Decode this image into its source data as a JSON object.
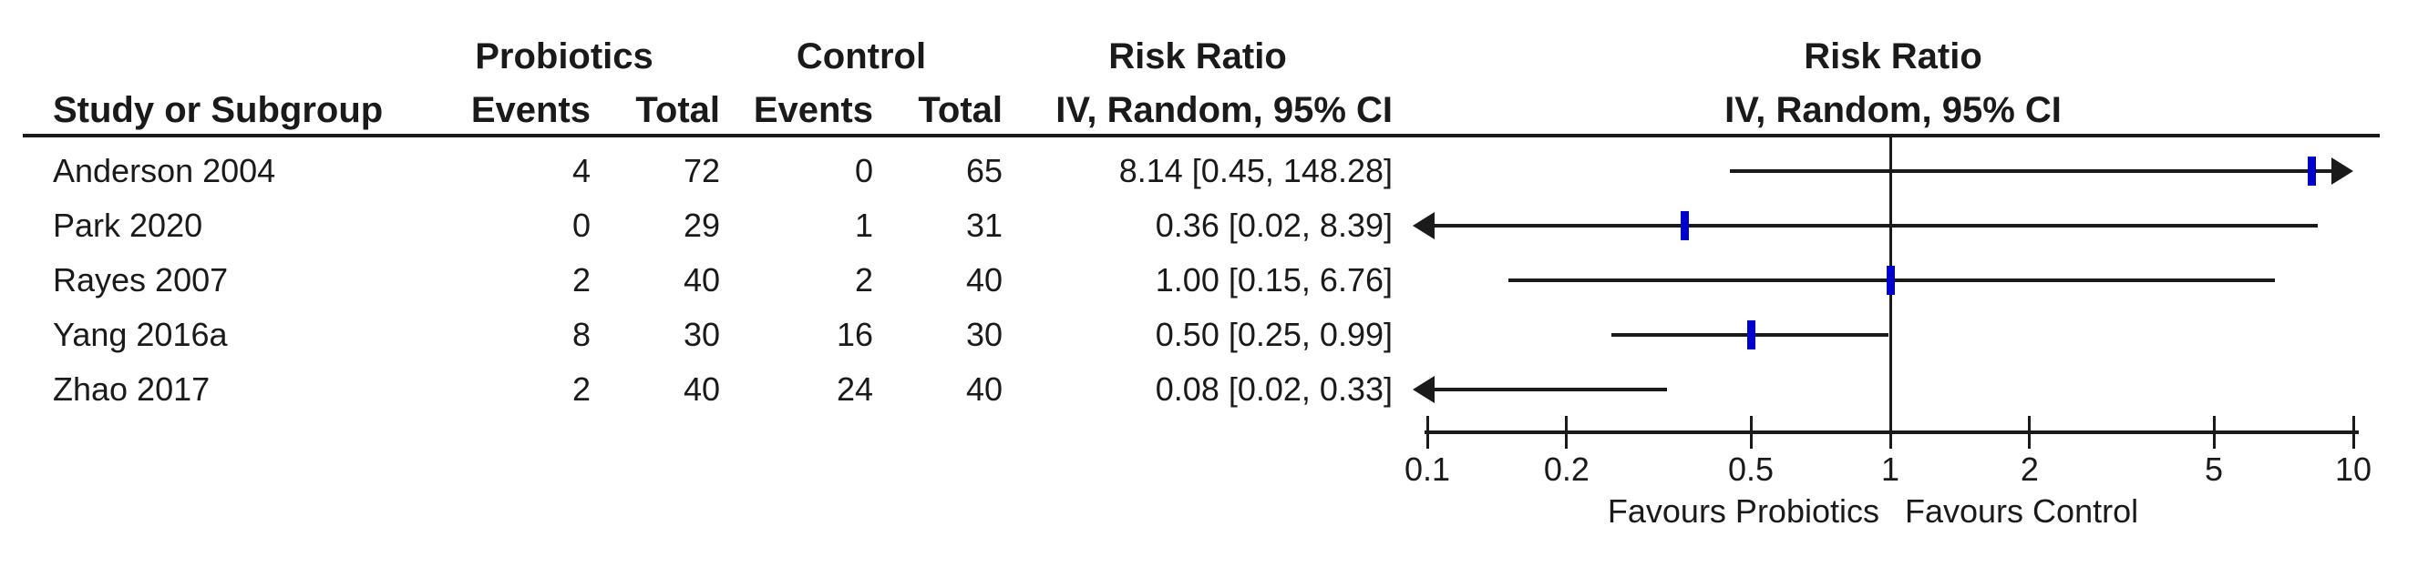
{
  "table": {
    "header": {
      "study_col": "Study or Subgroup",
      "group1": "Probiotics",
      "group2": "Control",
      "events": "Events",
      "total": "Total",
      "effect_line1": "Risk Ratio",
      "effect_line2": "IV, Random, 95% CI",
      "plot_line1": "Risk Ratio",
      "plot_line2": "IV, Random, 95% CI"
    },
    "rows": [
      {
        "study": "Anderson 2004",
        "events1": "4",
        "total1": "72",
        "events2": "0",
        "total2": "65",
        "ci": "8.14 [0.45, 148.28]"
      },
      {
        "study": "Park 2020",
        "events1": "0",
        "total1": "29",
        "events2": "1",
        "total2": "31",
        "ci": "0.36 [0.02, 8.39]"
      },
      {
        "study": "Rayes 2007",
        "events1": "2",
        "total1": "40",
        "events2": "2",
        "total2": "40",
        "ci": "1.00 [0.15, 6.76]"
      },
      {
        "study": "Yang 2016a",
        "events1": "8",
        "total1": "30",
        "events2": "16",
        "total2": "30",
        "ci": "0.50 [0.25, 0.99]"
      },
      {
        "study": "Zhao 2017",
        "events1": "2",
        "total1": "40",
        "events2": "24",
        "total2": "40",
        "ci": "0.08 [0.02, 0.33]"
      }
    ]
  },
  "chart_data": {
    "type": "forest",
    "effect_measure": "Risk Ratio",
    "method": "IV, Random, 95% CI",
    "scale": "log",
    "xlim": [
      0.1,
      10
    ],
    "ticks": [
      0.1,
      0.2,
      0.5,
      1,
      2,
      5,
      10
    ],
    "tick_labels": [
      "0.1",
      "0.2",
      "0.5",
      "1",
      "2",
      "5",
      "10"
    ],
    "null_line": 1,
    "favours_left": "Favours Probiotics",
    "favours_right": "Favours Control",
    "marker_color": "#0000cc",
    "line_color": "#1a1a1a",
    "studies": [
      {
        "name": "Anderson 2004",
        "rr": 8.14,
        "ci_low": 0.45,
        "ci_high": 148.28
      },
      {
        "name": "Park 2020",
        "rr": 0.36,
        "ci_low": 0.02,
        "ci_high": 8.39
      },
      {
        "name": "Rayes 2007",
        "rr": 1.0,
        "ci_low": 0.15,
        "ci_high": 6.76
      },
      {
        "name": "Yang 2016a",
        "rr": 0.5,
        "ci_low": 0.25,
        "ci_high": 0.99
      },
      {
        "name": "Zhao 2017",
        "rr": 0.08,
        "ci_low": 0.02,
        "ci_high": 0.33
      }
    ]
  }
}
